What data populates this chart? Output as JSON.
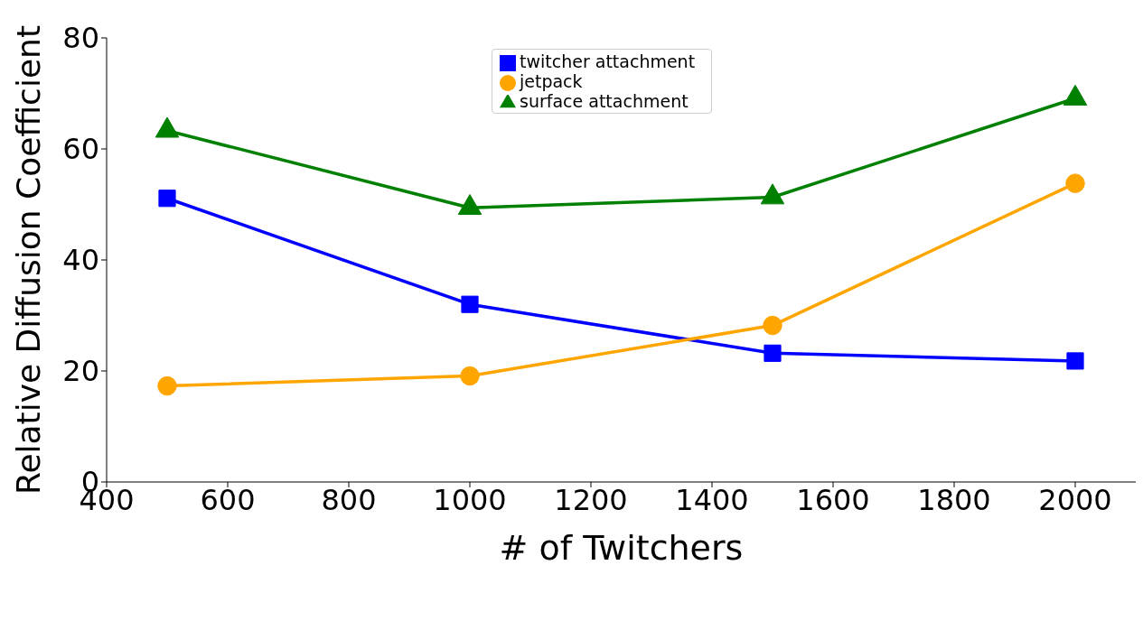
{
  "chart_data": {
    "type": "line",
    "xlabel": "# of Twitchers",
    "ylabel": "Relative Diffusion Coefficient",
    "x": [
      500,
      1000,
      1500,
      2000
    ],
    "series": [
      {
        "name": "twitcher attachment",
        "color": "#0000ff",
        "marker": "square",
        "values": [
          51.1,
          32.0,
          23.2,
          21.8
        ]
      },
      {
        "name": "jetpack",
        "color": "#ffa500",
        "marker": "circle",
        "values": [
          17.3,
          19.1,
          28.2,
          53.8
        ]
      },
      {
        "name": "surface attachment",
        "color": "#008000",
        "marker": "triangle",
        "values": [
          63.3,
          49.4,
          51.3,
          69.1
        ]
      }
    ],
    "xlim": [
      400,
      2100
    ],
    "xticks": [
      400,
      600,
      800,
      1000,
      1200,
      1400,
      1600,
      1800,
      2000
    ],
    "ylim": [
      0,
      80
    ],
    "yticks": [
      0,
      20,
      40,
      60,
      80
    ],
    "grid": false,
    "legend": "top",
    "line_style": "solid"
  }
}
